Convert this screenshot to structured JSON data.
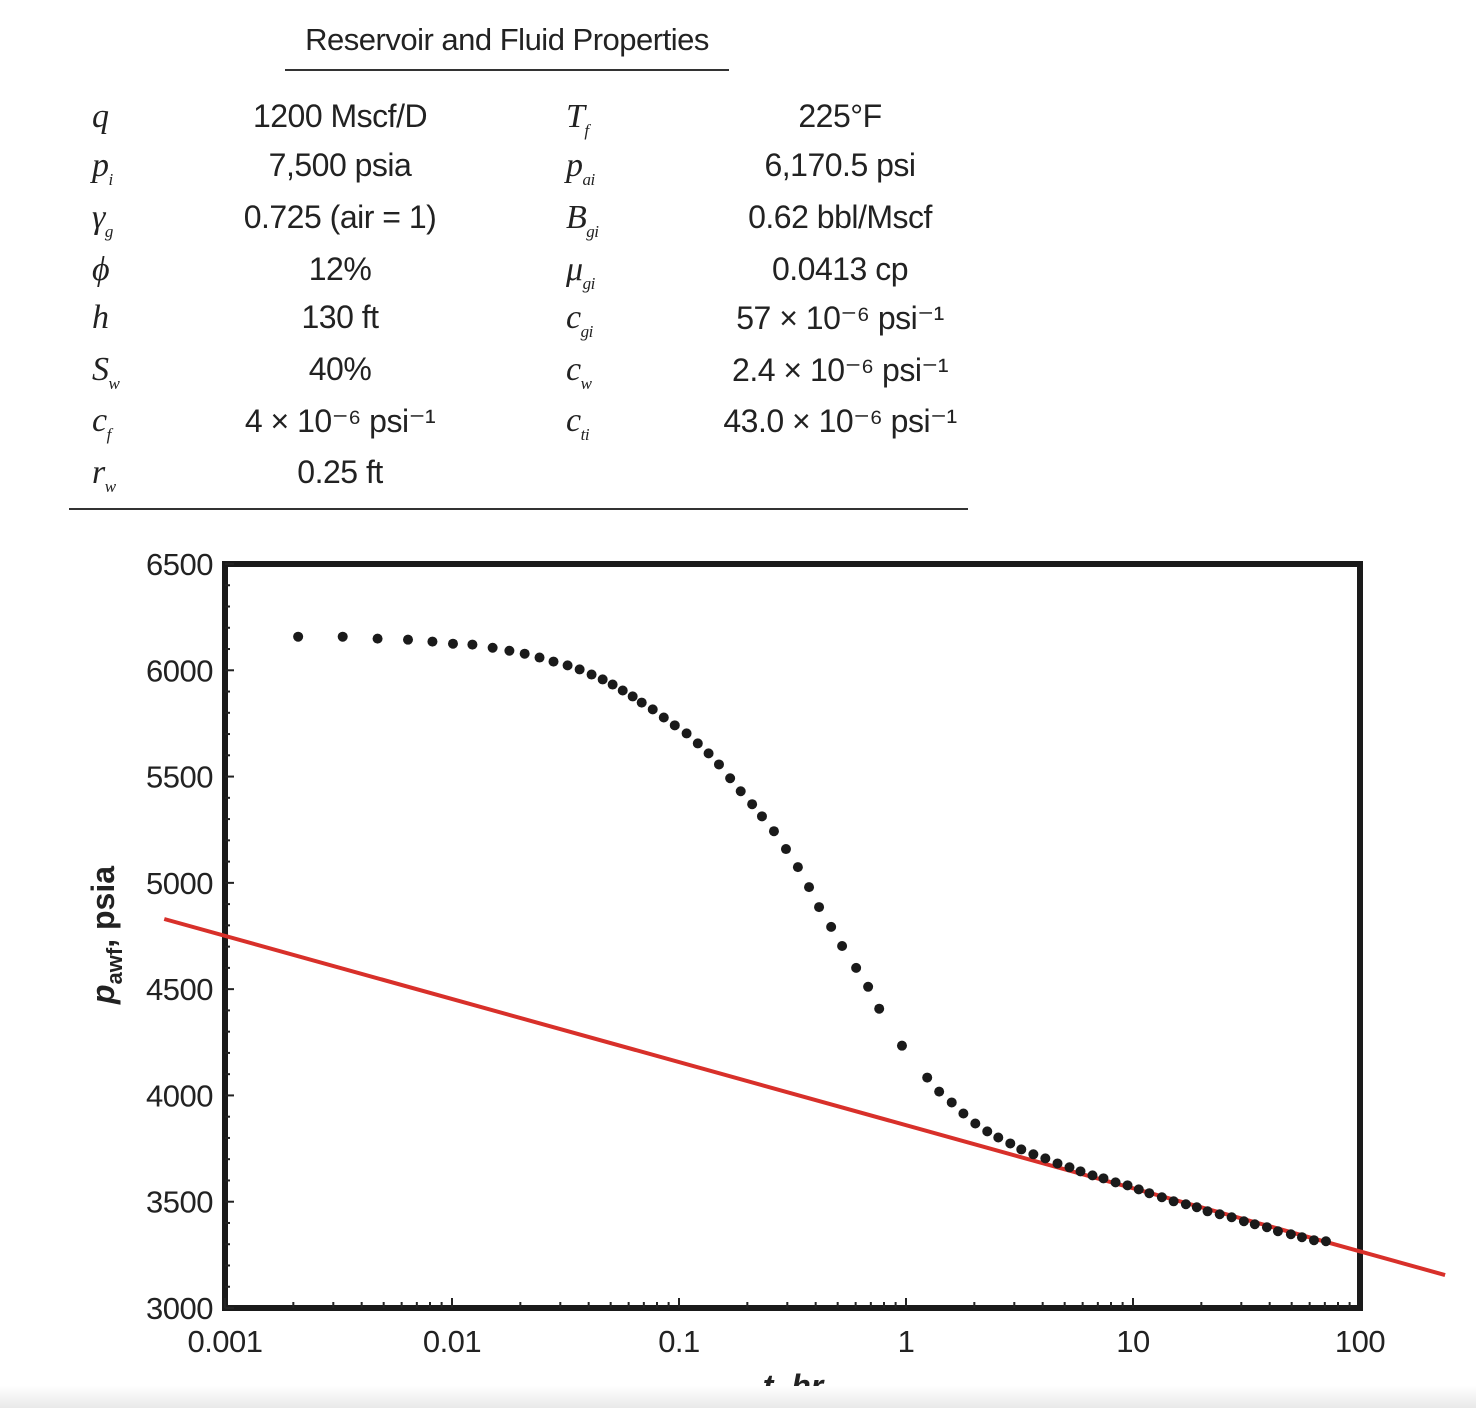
{
  "table": {
    "title": "Reservoir and Fluid Properties",
    "rows": [
      {
        "sym": "q",
        "sub": "",
        "value": "1200 Mscf/D",
        "sym2": "T",
        "sub2": "f",
        "value2": "225°F"
      },
      {
        "sym": "p",
        "sub": "i",
        "value": "7,500 psia",
        "sym2": "p",
        "sub2": "ai",
        "value2": "6,170.5 psi"
      },
      {
        "sym": "γ",
        "sub": "g",
        "value": "0.725 (air = 1)",
        "sym2": "B",
        "sub2": "gi",
        "value2": "0.62 bbl/Mscf"
      },
      {
        "sym": "ϕ",
        "sub": "",
        "value": "12%",
        "sym2": "μ",
        "sub2": "gi",
        "value2": "0.0413 cp"
      },
      {
        "sym": "h",
        "sub": "",
        "value": "130 ft",
        "sym2": "c",
        "sub2": "gi",
        "value2": "57 × 10⁻⁶ psi⁻¹"
      },
      {
        "sym": "S",
        "sub": "w",
        "value": "40%",
        "sym2": "c",
        "sub2": "w",
        "value2": "2.4 × 10⁻⁶ psi⁻¹"
      },
      {
        "sym": "c",
        "sub": "f",
        "value": "4 × 10⁻⁶ psi⁻¹",
        "sym2": "c",
        "sub2": "ti",
        "value2": "43.0 × 10⁻⁶ psi⁻¹"
      },
      {
        "sym": "r",
        "sub": "w",
        "value": "0.25 ft",
        "sym2": "",
        "sub2": "",
        "value2": ""
      }
    ]
  },
  "chart_data": {
    "type": "scatter",
    "title": "",
    "xlabel": "t, hr",
    "ylabel_main": "p",
    "ylabel_sub": "awf",
    "ylabel_tail": ", psia",
    "x_scale": "log",
    "xlim": [
      0.001,
      100
    ],
    "ylim": [
      3000,
      6500
    ],
    "x_ticks": [
      "0.001",
      "0.01",
      "0.1",
      "1",
      "10",
      "100"
    ],
    "x_tick_values": [
      0.001,
      0.01,
      0.1,
      1,
      10,
      100
    ],
    "y_ticks": [
      "3000",
      "3500",
      "4000",
      "4500",
      "5000",
      "5500",
      "6000",
      "6500"
    ],
    "y_tick_values": [
      3000,
      3500,
      4000,
      4500,
      5000,
      5500,
      6000,
      6500
    ],
    "grid": false,
    "colors": {
      "points": "#1a1a1a",
      "line": "#d8302a",
      "frame": "#1a1a1a"
    },
    "series": [
      {
        "type": "scatter",
        "t": [
          0.0021,
          0.0033,
          0.0047,
          0.0064,
          0.0082,
          0.0101,
          0.0123,
          0.0151,
          0.0179,
          0.0209,
          0.0243,
          0.028,
          0.0323,
          0.0365,
          0.0412,
          0.0461,
          0.051,
          0.0565,
          0.0625,
          0.0685,
          0.0766,
          0.0857,
          0.0958,
          0.108,
          0.121,
          0.135,
          0.15,
          0.168,
          0.187,
          0.21,
          0.232,
          0.262,
          0.296,
          0.334,
          0.374,
          0.414,
          0.468,
          0.523,
          0.603,
          0.681,
          0.762,
          0.96,
          1.24,
          1.4,
          1.59,
          1.79,
          2.02,
          2.28,
          2.55,
          2.88,
          3.22,
          3.64,
          4.11,
          4.65,
          5.25,
          5.87,
          6.63,
          7.41,
          8.38,
          9.46,
          10.6,
          11.8,
          13.4,
          15.1,
          17.1,
          19.1,
          21.3,
          24.1,
          27.2,
          30.8,
          34.4,
          38.9,
          43.5,
          49.6,
          55.5,
          62.7,
          70.8
        ],
        "p": [
          6158,
          6158,
          6149,
          6144,
          6135,
          6125,
          6121,
          6106,
          6092,
          6078,
          6060,
          6041,
          6023,
          6004,
          5980,
          5957,
          5933,
          5905,
          5877,
          5848,
          5816,
          5778,
          5741,
          5703,
          5656,
          5609,
          5557,
          5492,
          5431,
          5370,
          5313,
          5243,
          5159,
          5074,
          4980,
          4886,
          4793,
          4703,
          4600,
          4511,
          4408,
          4234,
          4084,
          4018,
          3967,
          3915,
          3868,
          3831,
          3802,
          3774,
          3746,
          3723,
          3704,
          3680,
          3662,
          3643,
          3624,
          3610,
          3591,
          3577,
          3558,
          3540,
          3521,
          3502,
          3488,
          3474,
          3455,
          3441,
          3427,
          3408,
          3394,
          3380,
          3361,
          3347,
          3333,
          3319,
          3314
        ]
      },
      {
        "type": "line",
        "t": [
          0.00054,
          237
        ],
        "p": [
          4830,
          3155
        ]
      }
    ]
  }
}
